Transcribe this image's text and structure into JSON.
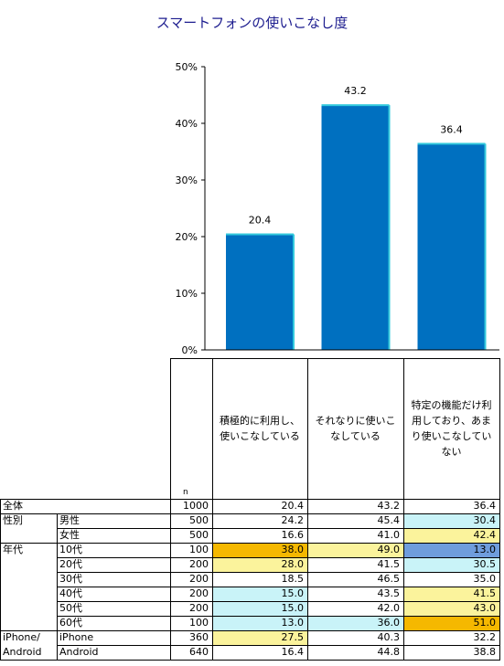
{
  "title": "スマートフォンの使いこなし度",
  "chart_data": {
    "type": "bar",
    "categories": [
      "積極的に利用し、使いこなしている",
      "それなりに使いこなしている",
      "特定の機能だけ利用しており、あまり使いこなしていない"
    ],
    "values": [
      20.4,
      43.2,
      36.4
    ],
    "value_labels": [
      "20.4",
      "43.2",
      "36.4"
    ],
    "ylim": [
      0,
      50
    ],
    "yticks": [
      "0%",
      "10%",
      "20%",
      "30%",
      "40%",
      "50%"
    ],
    "bar_color": "#0070c0"
  },
  "table": {
    "n_header": "n",
    "columns": [
      "積極的に利用し、使いこなしている",
      "それなりに使いこなしている",
      "特定の機能だけ利用しており、あまり使いこなしていない"
    ],
    "colors": {
      "orange": "#f5b800",
      "yellow": "#fbf39c",
      "cyan": "#c9f3f8",
      "blue": "#6f9ddc",
      "white": "#ffffff"
    },
    "rows": [
      {
        "group": "全体",
        "sub": "",
        "n": "1000",
        "vals": [
          "20.4",
          "43.2",
          "36.4"
        ],
        "bg": [
          "white",
          "white",
          "white"
        ]
      },
      {
        "group": "性別",
        "sub": "男性",
        "n": "500",
        "vals": [
          "24.2",
          "45.4",
          "30.4"
        ],
        "bg": [
          "white",
          "white",
          "cyan"
        ]
      },
      {
        "group": "",
        "sub": "女性",
        "n": "500",
        "vals": [
          "16.6",
          "41.0",
          "42.4"
        ],
        "bg": [
          "white",
          "white",
          "yellow"
        ]
      },
      {
        "group": "年代",
        "sub": "10代",
        "n": "100",
        "vals": [
          "38.0",
          "49.0",
          "13.0"
        ],
        "bg": [
          "orange",
          "yellow",
          "blue"
        ]
      },
      {
        "group": "",
        "sub": "20代",
        "n": "200",
        "vals": [
          "28.0",
          "41.5",
          "30.5"
        ],
        "bg": [
          "yellow",
          "white",
          "cyan"
        ]
      },
      {
        "group": "",
        "sub": "30代",
        "n": "200",
        "vals": [
          "18.5",
          "46.5",
          "35.0"
        ],
        "bg": [
          "white",
          "white",
          "white"
        ]
      },
      {
        "group": "",
        "sub": "40代",
        "n": "200",
        "vals": [
          "15.0",
          "43.5",
          "41.5"
        ],
        "bg": [
          "cyan",
          "white",
          "yellow"
        ]
      },
      {
        "group": "",
        "sub": "50代",
        "n": "200",
        "vals": [
          "15.0",
          "42.0",
          "43.0"
        ],
        "bg": [
          "cyan",
          "white",
          "yellow"
        ]
      },
      {
        "group": "",
        "sub": "60代",
        "n": "100",
        "vals": [
          "13.0",
          "36.0",
          "51.0"
        ],
        "bg": [
          "cyan",
          "cyan",
          "orange"
        ]
      },
      {
        "group": "iPhone/",
        "sub": "iPhone",
        "n": "360",
        "vals": [
          "27.5",
          "40.3",
          "32.2"
        ],
        "bg": [
          "yellow",
          "white",
          "white"
        ]
      },
      {
        "group": "Android",
        "sub": "Android",
        "n": "640",
        "vals": [
          "16.4",
          "44.8",
          "38.8"
        ],
        "bg": [
          "white",
          "white",
          "white"
        ]
      }
    ]
  }
}
